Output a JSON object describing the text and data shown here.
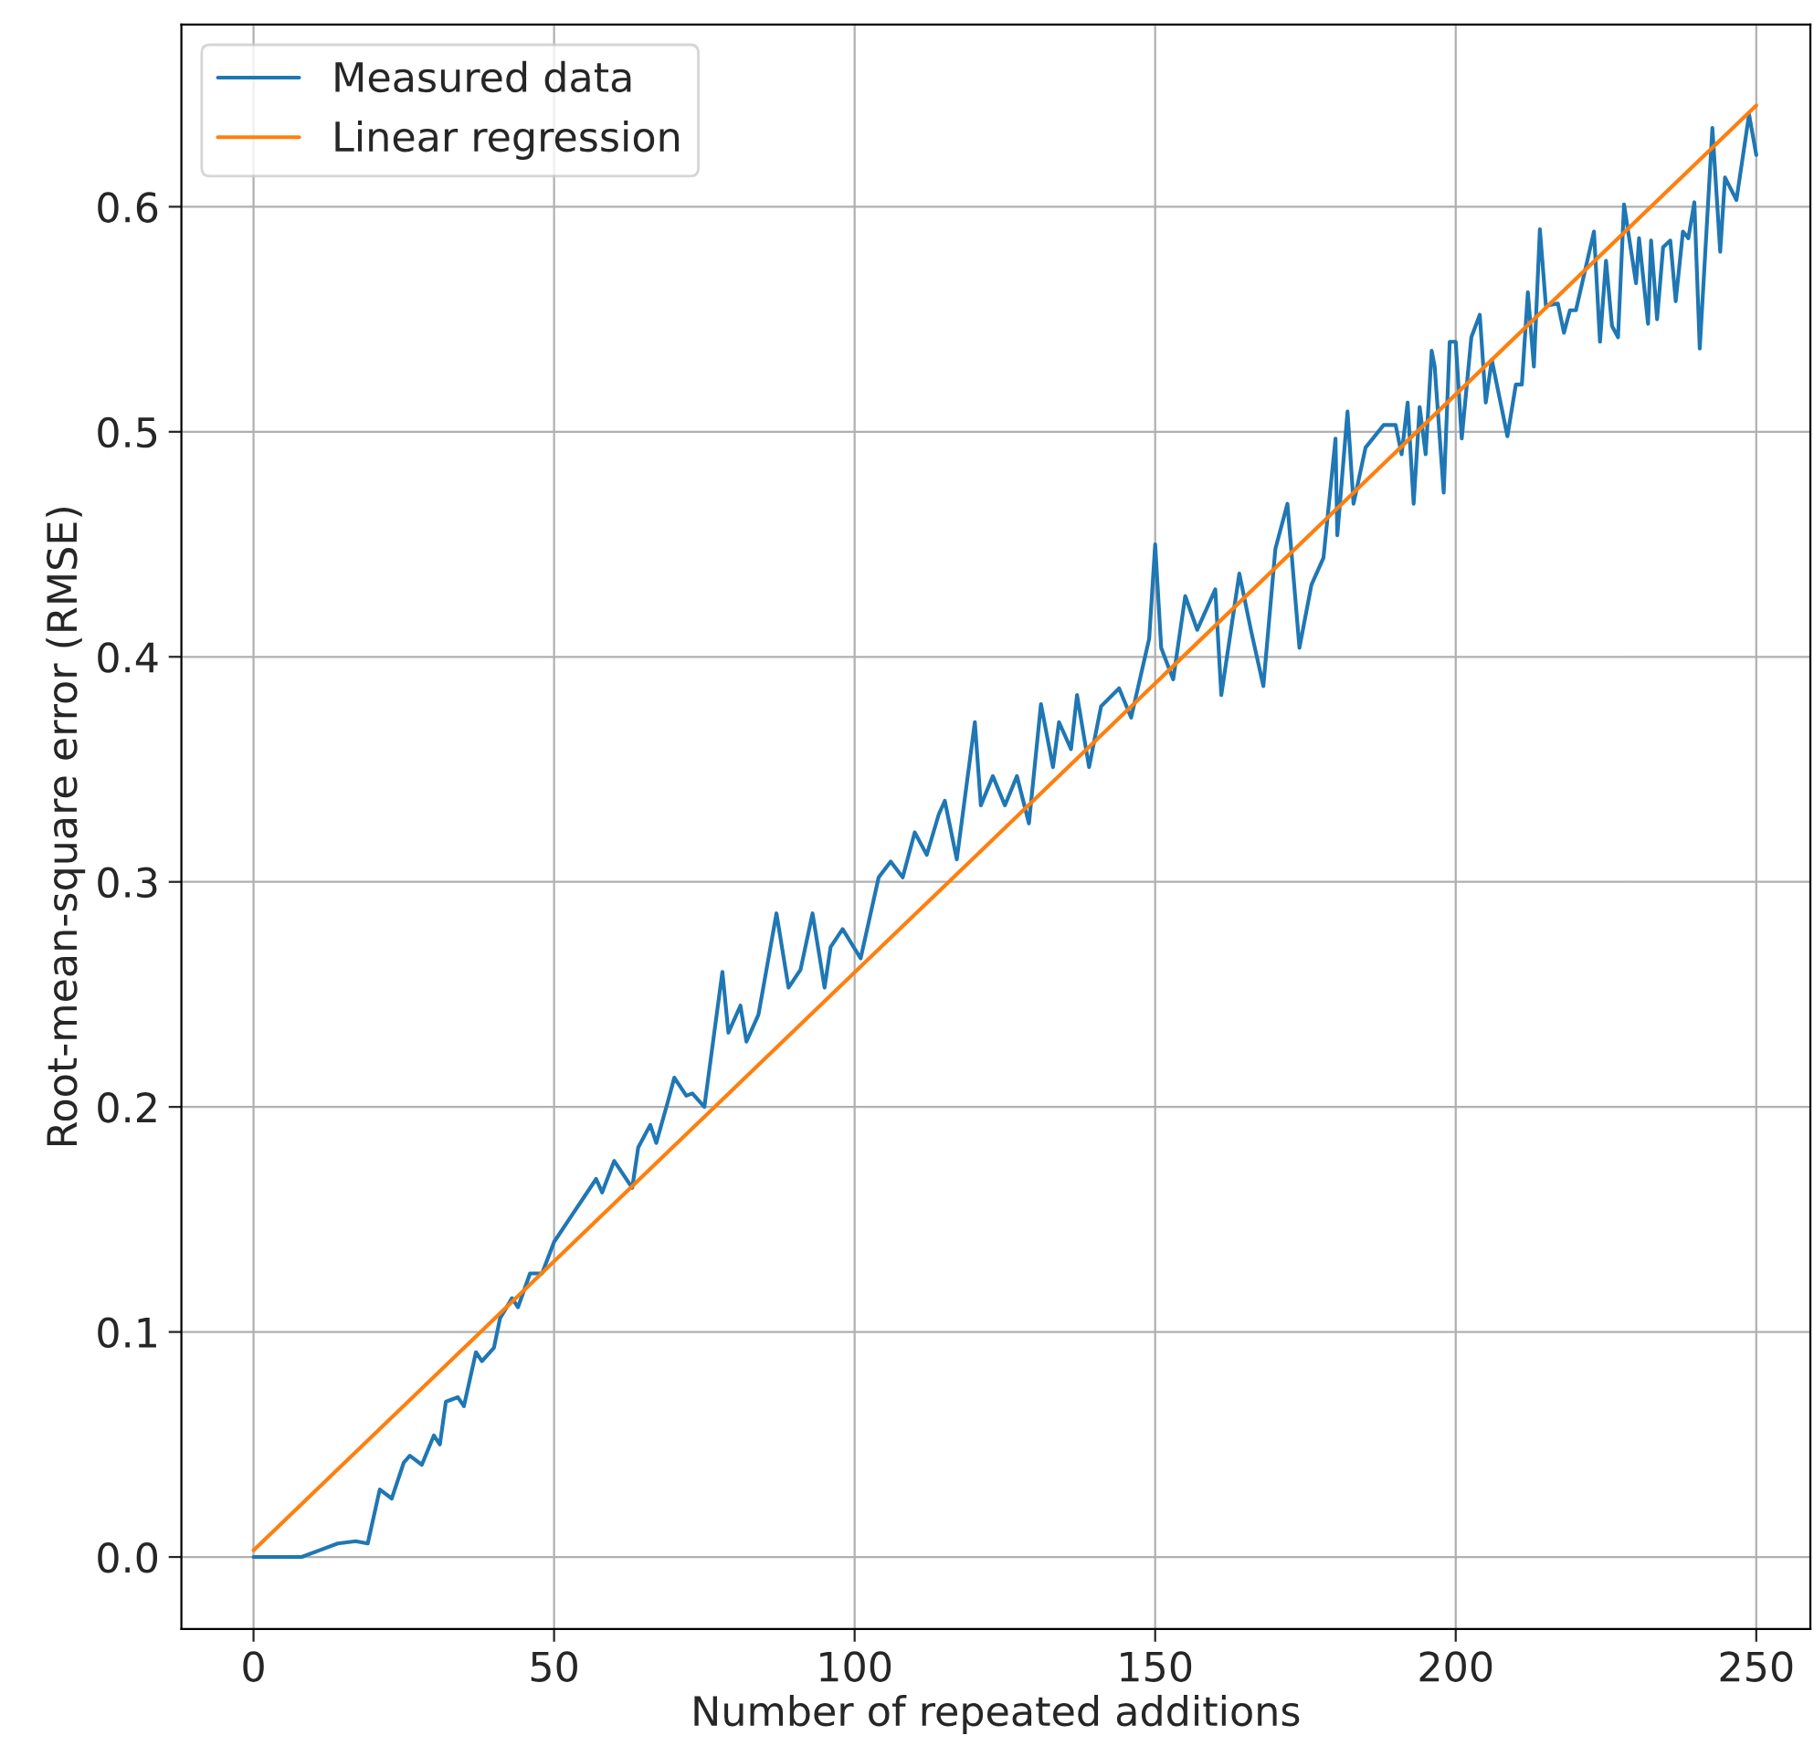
{
  "chart_data": {
    "type": "line",
    "xlabel": "Number of repeated additions",
    "ylabel": "Root-mean-square error (RMSE)",
    "xlim": [
      -12,
      259
    ],
    "ylim": [
      -0.032,
      0.681
    ],
    "xticks": [
      0,
      50,
      100,
      150,
      200,
      250
    ],
    "yticks": [
      {
        "value": 0,
        "label": "0.0"
      },
      {
        "value": 0.1,
        "label": "0.1"
      },
      {
        "value": 0.2,
        "label": "0.2"
      },
      {
        "value": 0.3,
        "label": "0.3"
      },
      {
        "value": 0.4,
        "label": "0.4"
      },
      {
        "value": 0.5,
        "label": "0.5"
      },
      {
        "value": 0.6,
        "label": "0.6"
      }
    ],
    "grid": true,
    "legend": "top left",
    "marker": "none",
    "line_style": "solid",
    "series": [
      {
        "name": "Measured data",
        "color": "#1f77b4",
        "x": [
          0,
          8,
          11,
          14,
          17,
          19,
          21,
          23,
          25,
          26,
          28,
          30,
          31,
          32,
          34,
          35,
          37,
          38,
          40,
          41,
          43,
          44,
          46,
          48,
          50,
          53,
          55,
          57,
          58,
          60,
          61,
          63,
          64,
          66,
          67,
          69,
          70,
          72,
          73,
          75,
          78,
          79,
          81,
          82,
          84,
          87,
          89,
          91,
          93,
          95,
          96,
          98,
          101,
          104,
          106,
          108,
          110,
          112,
          114,
          115,
          117,
          120,
          121,
          123,
          125,
          127,
          129,
          131,
          133,
          134,
          136,
          137,
          139,
          141,
          144,
          146,
          149,
          150,
          151,
          153,
          155,
          157,
          160,
          161,
          164,
          166,
          168,
          170,
          172,
          174,
          176,
          178,
          180,
          180.3,
          182,
          183,
          185,
          188,
          190,
          191,
          192,
          193,
          194,
          195,
          196,
          196.5,
          198,
          199,
          200,
          201,
          202.6,
          204,
          205,
          206,
          208.6,
          210,
          211,
          212,
          213,
          214,
          215,
          217,
          218,
          219,
          220,
          223,
          224,
          225,
          226,
          227,
          228,
          230,
          230.5,
          232,
          232.5,
          233.5,
          234.5,
          235.7,
          236.6,
          237.8,
          238.7,
          239.7,
          240.6,
          242.7,
          244,
          244.8,
          246.7,
          248.8,
          250
        ],
        "values": [
          0,
          0,
          0.003,
          0.006,
          0.007,
          0.006,
          0.03,
          0.026,
          0.042,
          0.045,
          0.041,
          0.054,
          0.05,
          0.069,
          0.071,
          0.067,
          0.091,
          0.087,
          0.093,
          0.106,
          0.115,
          0.111,
          0.126,
          0.126,
          0.14,
          0.152,
          0.16,
          0.168,
          0.162,
          0.176,
          0.172,
          0.164,
          0.182,
          0.192,
          0.184,
          0.203,
          0.213,
          0.205,
          0.206,
          0.2,
          0.26,
          0.233,
          0.245,
          0.229,
          0.241,
          0.286,
          0.253,
          0.261,
          0.286,
          0.253,
          0.271,
          0.279,
          0.266,
          0.302,
          0.309,
          0.302,
          0.322,
          0.312,
          0.33,
          0.336,
          0.31,
          0.371,
          0.334,
          0.347,
          0.334,
          0.347,
          0.326,
          0.379,
          0.351,
          0.371,
          0.359,
          0.383,
          0.351,
          0.378,
          0.386,
          0.373,
          0.408,
          0.45,
          0.404,
          0.39,
          0.427,
          0.412,
          0.43,
          0.383,
          0.437,
          0.411,
          0.387,
          0.448,
          0.468,
          0.404,
          0.432,
          0.444,
          0.497,
          0.454,
          0.509,
          0.468,
          0.493,
          0.503,
          0.503,
          0.49,
          0.513,
          0.468,
          0.511,
          0.49,
          0.536,
          0.529,
          0.473,
          0.54,
          0.54,
          0.497,
          0.542,
          0.552,
          0.513,
          0.532,
          0.498,
          0.521,
          0.521,
          0.562,
          0.529,
          0.59,
          0.556,
          0.557,
          0.544,
          0.554,
          0.554,
          0.589,
          0.54,
          0.576,
          0.547,
          0.542,
          0.601,
          0.566,
          0.586,
          0.548,
          0.585,
          0.55,
          0.582,
          0.585,
          0.558,
          0.589,
          0.586,
          0.602,
          0.537,
          0.635,
          0.58,
          0.613,
          0.603,
          0.641,
          0.623
        ]
      },
      {
        "name": "Linear regression",
        "color": "#ff7f0e",
        "x": [
          0,
          250
        ],
        "values": [
          0.003,
          0.645
        ]
      }
    ]
  }
}
